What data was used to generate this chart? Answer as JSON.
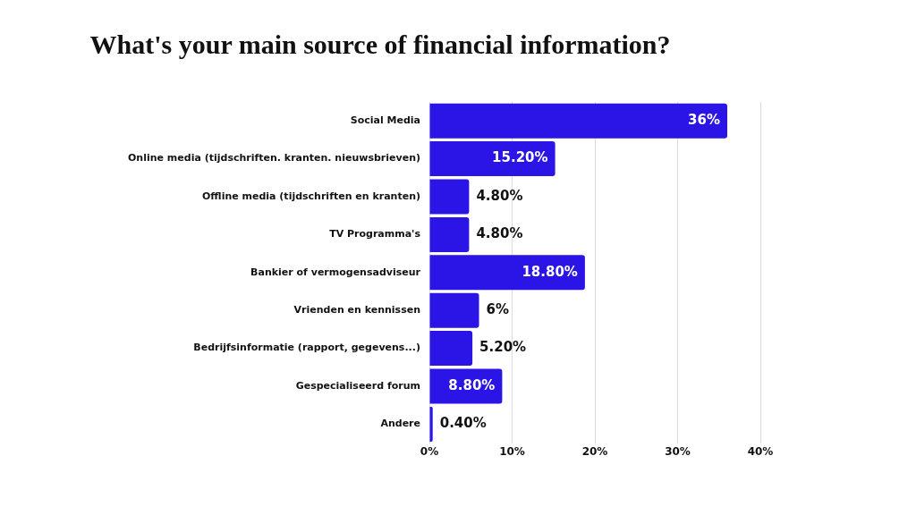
{
  "chart_data": {
    "type": "bar",
    "orientation": "horizontal",
    "title": "What's your main source of financial information?",
    "categories": [
      "Social Media",
      "Online media (tijdschriften. kranten. nieuwsbrieven)",
      "Offline media (tijdschriften en kranten)",
      "TV Programma's",
      "Bankier of vermogensadviseur",
      "Vrienden en kennissen",
      "Bedrijfsinformatie (rapport, gegevens...)",
      "Gespecialiseerd forum",
      "Andere"
    ],
    "values": [
      36,
      15.2,
      4.8,
      4.8,
      18.8,
      6,
      5.2,
      8.8,
      0.4
    ],
    "value_labels": [
      "36%",
      "15.20%",
      "4.80%",
      "4.80%",
      "18.80%",
      "6%",
      "5.20%",
      "8.80%",
      "0.40%"
    ],
    "color": "#2b14e6",
    "xlim": [
      0,
      40
    ],
    "xticks": [
      {
        "value": 0,
        "label": "0%"
      },
      {
        "value": 10,
        "label": "10%"
      },
      {
        "value": 20,
        "label": "20%"
      },
      {
        "value": 30,
        "label": "30%"
      },
      {
        "value": 40,
        "label": "40%"
      }
    ],
    "grid": "x"
  }
}
